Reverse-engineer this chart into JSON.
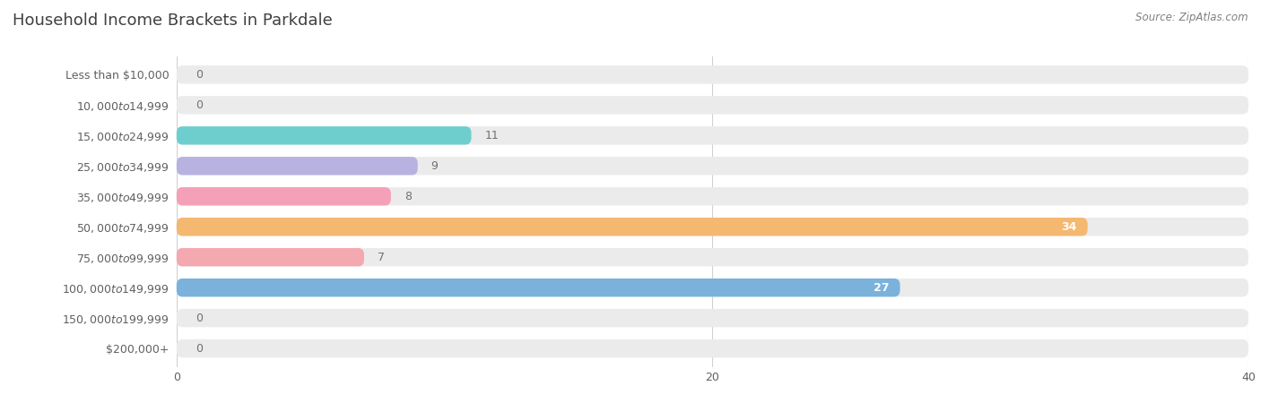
{
  "title": "Household Income Brackets in Parkdale",
  "source": "Source: ZipAtlas.com",
  "categories": [
    "Less than $10,000",
    "$10,000 to $14,999",
    "$15,000 to $24,999",
    "$25,000 to $34,999",
    "$35,000 to $49,999",
    "$50,000 to $74,999",
    "$75,000 to $99,999",
    "$100,000 to $149,999",
    "$150,000 to $199,999",
    "$200,000+"
  ],
  "values": [
    0,
    0,
    11,
    9,
    8,
    34,
    7,
    27,
    0,
    0
  ],
  "bar_colors": [
    "#aac8e8",
    "#d4aad4",
    "#6ecece",
    "#b8b2e0",
    "#f4a0b8",
    "#f4b870",
    "#f4a8b0",
    "#7ab2dc",
    "#c8aad8",
    "#80ccd0"
  ],
  "xlim": [
    0,
    40
  ],
  "xticks": [
    0,
    20,
    40
  ],
  "bg_color": "#ffffff",
  "bar_bg_color": "#ebebeb",
  "title_color": "#404040",
  "label_color": "#606060",
  "source_color": "#808080",
  "value_label_color_inside": "#ffffff",
  "value_label_color_outside": "#707070",
  "bar_height": 0.6,
  "title_fontsize": 13,
  "label_fontsize": 9,
  "value_fontsize": 9
}
